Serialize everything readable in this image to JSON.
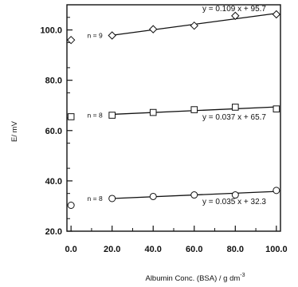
{
  "chart_data": {
    "type": "scatter",
    "title": "",
    "xlabel": "Albumin Conc. (BSA) / g dm",
    "xlabel_superscript": "-3",
    "ylabel": "E/ mV",
    "xlim": [
      -2,
      102
    ],
    "ylim": [
      20,
      110
    ],
    "x_ticks": [
      0,
      20,
      40,
      60,
      80,
      100
    ],
    "x_tick_labels": [
      "0.0",
      "20.0",
      "40.0",
      "60.0",
      "80.0",
      "100.0"
    ],
    "y_ticks": [
      20,
      40,
      60,
      80,
      100
    ],
    "y_tick_labels": [
      "20.0",
      "40.0",
      "60.0",
      "80.0",
      "100.0"
    ],
    "grid": false,
    "series": [
      {
        "marker": "diamond",
        "n_label": "n = 9",
        "x": [
          0,
          20,
          40,
          60,
          80,
          100
        ],
        "y": [
          96.0,
          97.8,
          100.3,
          101.7,
          105.6,
          106.2
        ],
        "fit": {
          "slope": 0.109,
          "intercept": 95.7,
          "x_range": [
            20,
            100
          ],
          "equation": "y = 0.109 x + 95.7"
        }
      },
      {
        "marker": "square",
        "n_label": "n = 8",
        "x": [
          0,
          20,
          40,
          60,
          80,
          100
        ],
        "y": [
          65.5,
          66.1,
          67.2,
          68.3,
          69.3,
          68.6
        ],
        "fit": {
          "slope": 0.037,
          "intercept": 65.7,
          "x_range": [
            20,
            100
          ],
          "equation": "y = 0.037 x + 65.7"
        }
      },
      {
        "marker": "circle",
        "n_label": "n = 8",
        "x": [
          0,
          20,
          40,
          60,
          80,
          100
        ],
        "y": [
          30.3,
          33.0,
          33.8,
          34.4,
          34.4,
          36.2
        ],
        "fit": {
          "slope": 0.035,
          "intercept": 32.3,
          "x_range": [
            20,
            100
          ],
          "equation": "y = 0.035 x + 32.3"
        }
      }
    ]
  }
}
